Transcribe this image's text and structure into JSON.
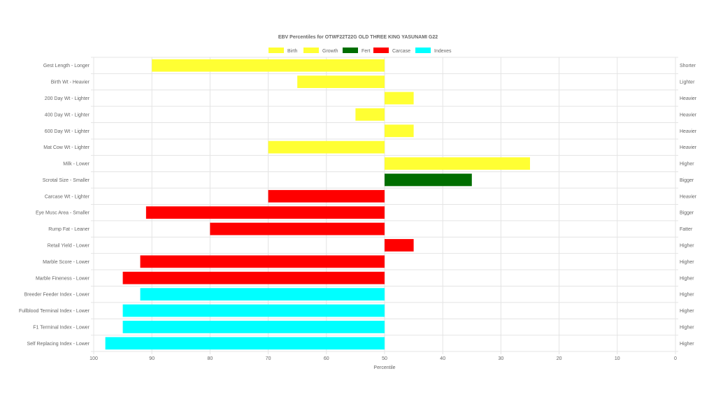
{
  "chart_data": {
    "type": "bar",
    "orientation": "horizontal",
    "title": "EBV Percentiles for OTWF22T22G OLD THREE KING YASUNAMI G22",
    "xlabel": "Percentile",
    "ylabel": "",
    "xlim": [
      100,
      0
    ],
    "xaxis_reversed": true,
    "bar_origin": 50,
    "x_ticks": [
      "100",
      "90",
      "80",
      "70",
      "60",
      "50",
      "40",
      "30",
      "20",
      "10",
      "0"
    ],
    "grid": true,
    "legend_position": "top",
    "legend": [
      {
        "label": "Birth",
        "color": "#ffff33"
      },
      {
        "label": "Growth",
        "color": "#ffff33"
      },
      {
        "label": "Fert",
        "color": "#006e00"
      },
      {
        "label": "Carcase",
        "color": "#ff0000"
      },
      {
        "label": "Indexes",
        "color": "#00ffff"
      }
    ],
    "categories": [
      "Gest Length - Longer",
      "Birth Wt - Heavier",
      "200 Day Wt - Lighter",
      "400 Day Wt - Lighter",
      "600 Day Wt - Lighter",
      "Mat Cow Wt - Lighter",
      "Milk - Lower",
      "Scrotal Size - Smaller",
      "Carcase Wt - Lighter",
      "Eye Musc Area - Smaller",
      "Rump Fat - Leaner",
      "Retail Yield - Lower",
      "Marble Score - Lower",
      "Marble Fineness - Lower",
      "Breeder Feeder Index - Lower",
      "Fullblood Terminal Index - Lower",
      "F1 Terminal Index - Lower",
      "Self Replacing Index - Lower"
    ],
    "right_labels": [
      "Shorter",
      "Lighter",
      "Heavier",
      "Heavier",
      "Heavier",
      "Heavier",
      "Higher",
      "Bigger",
      "Heavier",
      "Bigger",
      "Fatter",
      "Higher",
      "Higher",
      "Higher",
      "Higher",
      "Higher",
      "Higher",
      "Higher"
    ],
    "values": [
      90,
      65,
      45,
      55,
      45,
      70,
      25,
      35,
      70,
      91,
      80,
      45,
      92,
      95,
      92,
      95,
      95,
      98
    ],
    "groups": [
      "Birth",
      "Birth",
      "Growth",
      "Growth",
      "Growth",
      "Growth",
      "Growth",
      "Fert",
      "Carcase",
      "Carcase",
      "Carcase",
      "Carcase",
      "Carcase",
      "Carcase",
      "Indexes",
      "Indexes",
      "Indexes",
      "Indexes"
    ],
    "colors": {
      "Birth": "#ffff33",
      "Growth": "#ffff33",
      "Fert": "#006e00",
      "Carcase": "#ff0000",
      "Indexes": "#00ffff"
    }
  }
}
